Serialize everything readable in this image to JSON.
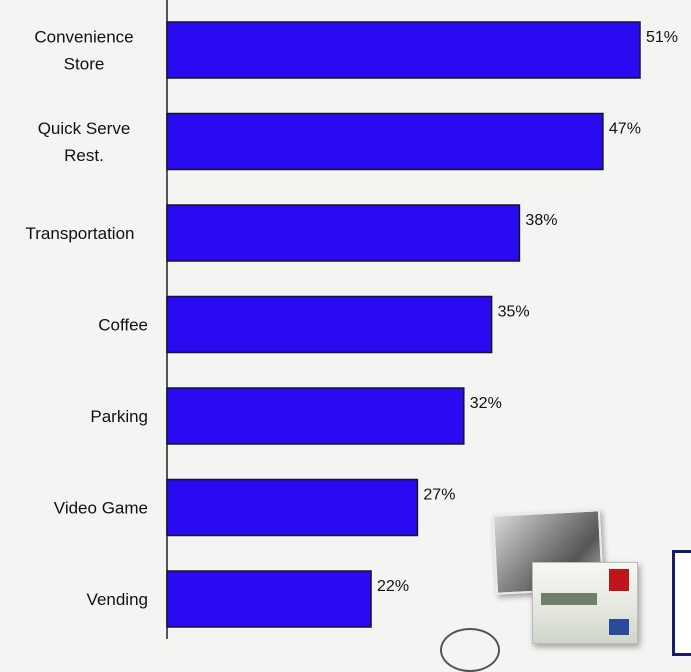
{
  "chart_data": {
    "type": "bar",
    "orientation": "horizontal",
    "categories": [
      [
        "Convenience",
        "Store"
      ],
      [
        "Quick Serve",
        "Rest."
      ],
      [
        "Transportation"
      ],
      [
        "Coffee"
      ],
      [
        "Parking"
      ],
      [
        "Video Game"
      ],
      [
        "Vending"
      ]
    ],
    "values": [
      51,
      47,
      38,
      35,
      32,
      27,
      22
    ],
    "value_labels": [
      "51%",
      "47%",
      "38%",
      "35%",
      "32%",
      "27%",
      "22%"
    ],
    "xlim": [
      0,
      51
    ],
    "title": "",
    "xlabel": "",
    "ylabel": "",
    "grid": false,
    "legend": "none",
    "bar_color": "#2a0af0",
    "bar_edge_color": "#141428"
  },
  "decorations": {
    "photo_card_icon": "stagecoach-photo-card-icon",
    "credit_card_icon": "credit-card-icon"
  }
}
